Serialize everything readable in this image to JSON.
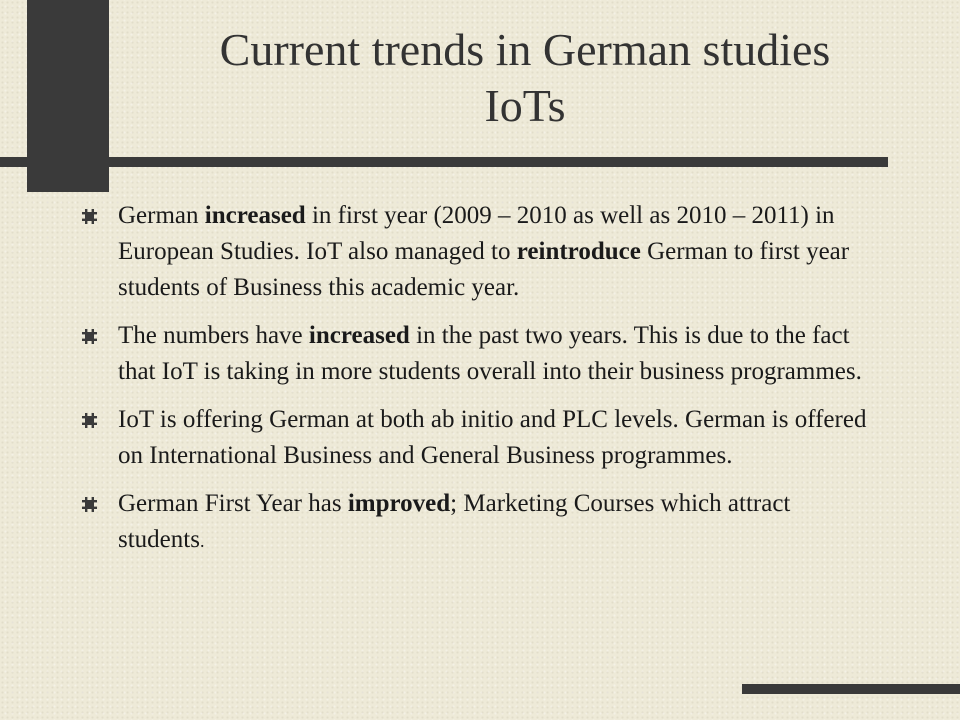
{
  "slide": {
    "title_line1": "Current trends in German studies",
    "title_line2": "IoTs",
    "bullets": [
      {
        "segments": [
          {
            "text": "German ",
            "bold": false
          },
          {
            "text": "increased",
            "bold": true
          },
          {
            "text": " in first year (2009 – 2010 as well as 2010 – 2011) in European Studies. IoT also managed to ",
            "bold": false
          },
          {
            "text": "reintroduce",
            "bold": true
          },
          {
            "text": " German to first year students of Business this academic year.",
            "bold": false
          }
        ]
      },
      {
        "segments": [
          {
            "text": "The numbers have ",
            "bold": false
          },
          {
            "text": "increased",
            "bold": true
          },
          {
            "text": " in the past two years. This is due to the fact that IoT is taking in more students overall into their business programmes.",
            "bold": false
          }
        ]
      },
      {
        "segments": [
          {
            "text": "IoT is offering German at both ab initio and PLC levels. German is offered on International Business and General Business programmes.",
            "bold": false
          }
        ]
      },
      {
        "segments": [
          {
            "text": "German First Year has ",
            "bold": false
          },
          {
            "text": "improved",
            "bold": true
          },
          {
            "text": "; Marketing Courses which attract students",
            "bold": false
          },
          {
            "text": ".",
            "bold": false,
            "small": true
          }
        ]
      }
    ],
    "colors": {
      "background": "#eeead8",
      "accent_dark": "#3a3a3a",
      "title_text": "#333333",
      "body_text": "#1a1a1a"
    },
    "bullet_icon": "hash-bullet-icon"
  }
}
